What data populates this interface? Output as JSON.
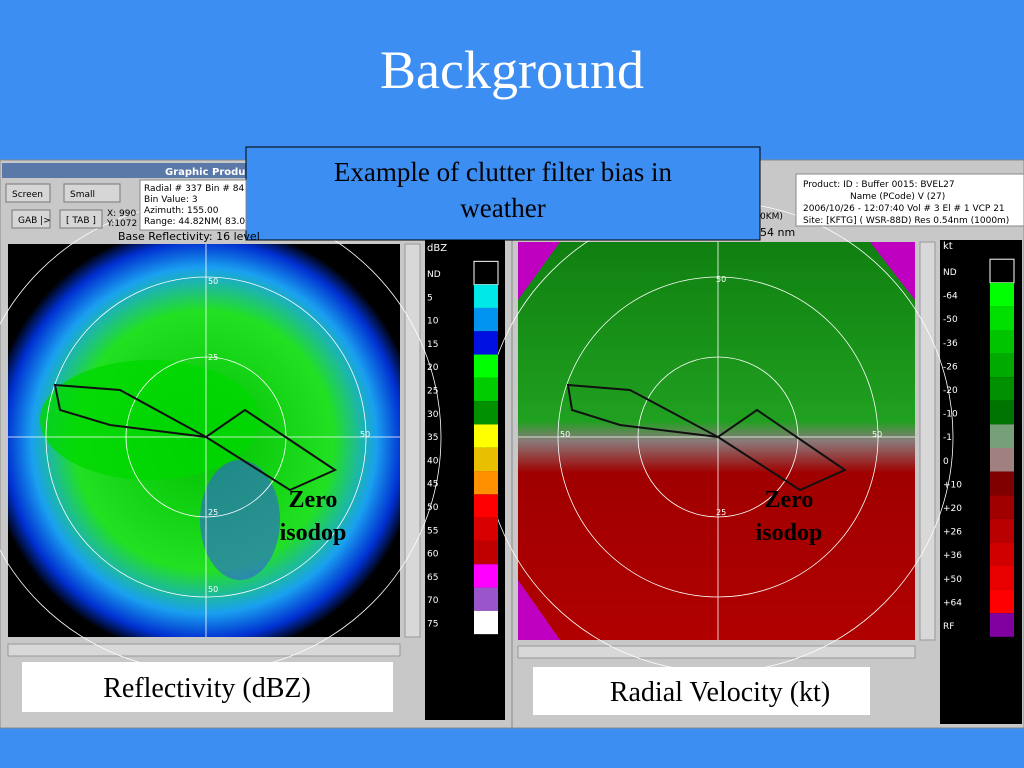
{
  "title": "Background",
  "callout": "Example of clutter filter bias in weather",
  "left_panel": {
    "window_title": "Graphic Produc",
    "buttons": [
      "Screen",
      "Small",
      "GAB |>",
      "[ TAB ]"
    ],
    "coords": [
      "X: 990",
      "Y:1072"
    ],
    "info": [
      "Radial # 337    Bin # 84",
      "Bin Value: 3",
      "Azimuth: 155.00",
      "Range:  44.82NM( 83.0"
    ],
    "status": "Base Reflectivity: 16 level",
    "unit": "dBZ",
    "legend_labels": [
      "ND",
      "5",
      "10",
      "15",
      "20",
      "25",
      "30",
      "35",
      "40",
      "45",
      "50",
      "55",
      "60",
      "65",
      "70",
      "75"
    ],
    "legend_colors": [
      "#000000",
      "#00e8e8",
      "#0094f0",
      "#0010e0",
      "#00ff00",
      "#00cc00",
      "#009000",
      "#ffff00",
      "#e8c000",
      "#ff9000",
      "#ff0000",
      "#d80000",
      "#c00000",
      "#ff00ff",
      "#9955c9",
      "#ffffff"
    ],
    "ring_labels": [
      "50",
      "25",
      "50",
      "25",
      "50"
    ],
    "annotation": "Zero isodop",
    "caption": "Reflectivity (dBZ)"
  },
  "right_panel": {
    "info": [
      "Product:           ID : Buffer   0015: BVEL27",
      "Name (PCode)   V   (27)",
      "2006/10/26 - 12:07:40    Vol # 3  El # 1  VCP 21",
      "Site: [KFTG] ( WSR-88D)   Res  0.54nm (1000m)"
    ],
    "range_fragments": [
      "0KM)",
      "54 nm"
    ],
    "unit": "kt",
    "legend_labels": [
      "ND",
      "-64",
      "-50",
      "-36",
      "-26",
      "-20",
      "-10",
      "-1",
      "0",
      "+10",
      "+20",
      "+26",
      "+36",
      "+50",
      "+64",
      "RF"
    ],
    "legend_colors": [
      "#000000",
      "#00ff00",
      "#00e000",
      "#00c400",
      "#00aa00",
      "#009000",
      "#007400",
      "#78a078",
      "#a08080",
      "#800000",
      "#a00000",
      "#b80000",
      "#d00000",
      "#e80000",
      "#ff0000",
      "#8000a0"
    ],
    "ring_labels": [
      "50",
      "50",
      "50",
      "25"
    ],
    "annotation": "Zero isodop",
    "caption": "Radial Velocity (kt)"
  }
}
